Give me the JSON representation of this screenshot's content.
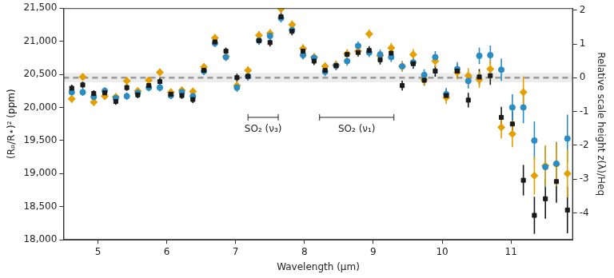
{
  "chart_data": {
    "type": "scatter",
    "x_label": "Wavelength (µm)",
    "y_label": "(Rₚ/R⋆)² (ppm)",
    "y2_label": "Relative scale height z(λ)/Heq",
    "xlim": [
      4.5,
      11.9
    ],
    "xticks": [
      5,
      6,
      7,
      8,
      9,
      10,
      11
    ],
    "ylim": [
      18000,
      21500
    ],
    "yticks": [
      {
        "value": 18000,
        "label": "18,000"
      },
      {
        "value": 18500,
        "label": "18,500"
      },
      {
        "value": 19000,
        "label": "19,000"
      },
      {
        "value": 19500,
        "label": "19,500"
      },
      {
        "value": 20000,
        "label": "20,000"
      },
      {
        "value": 20500,
        "label": "20,500"
      },
      {
        "value": 21000,
        "label": "21,000"
      },
      {
        "value": 21500,
        "label": "21,500"
      }
    ],
    "y2lim": [
      -4.8,
      2.06
    ],
    "y2ticks": [
      -4,
      -3,
      -2,
      -1,
      0,
      1,
      2
    ],
    "grid": false,
    "reference": {
      "value": 20450,
      "band": [
        20380,
        20520
      ],
      "line_style": "dashed"
    },
    "annotations": [
      {
        "text": "SO₂ (ν₃)",
        "x": [
          7.18,
          7.62
        ],
        "y": 19850
      },
      {
        "text": "SO₂ (ν₁)",
        "x": [
          8.22,
          9.3
        ],
        "y": 19850
      }
    ],
    "x": [
      4.62,
      4.78,
      4.94,
      5.1,
      5.26,
      5.42,
      5.58,
      5.74,
      5.9,
      6.06,
      6.22,
      6.38,
      6.54,
      6.7,
      6.86,
      7.02,
      7.18,
      7.34,
      7.5,
      7.66,
      7.82,
      7.98,
      8.14,
      8.3,
      8.46,
      8.62,
      8.78,
      8.94,
      9.1,
      9.26,
      9.42,
      9.58,
      9.74,
      9.9,
      10.06,
      10.22,
      10.38,
      10.54,
      10.7,
      10.86,
      11.02,
      11.18,
      11.34,
      11.5,
      11.66,
      11.82
    ],
    "series": [
      {
        "color": "#1a1a1a",
        "marker": "square",
        "values": [
          20290,
          20340,
          20210,
          20220,
          20090,
          20300,
          20190,
          20330,
          20390,
          20200,
          20180,
          20120,
          20560,
          20990,
          20850,
          20450,
          20470,
          21010,
          20980,
          21370,
          21150,
          20850,
          20700,
          20560,
          20630,
          20800,
          20830,
          20860,
          20720,
          20820,
          20330,
          20660,
          20410,
          20550,
          20180,
          20550,
          20110,
          20460,
          20480,
          19850,
          19750,
          18900,
          18370,
          18620,
          18880,
          18450
        ],
        "errors": [
          55,
          50,
          50,
          50,
          50,
          50,
          50,
          50,
          55,
          50,
          50,
          55,
          55,
          55,
          55,
          60,
          60,
          60,
          60,
          60,
          60,
          60,
          60,
          60,
          65,
          65,
          65,
          65,
          70,
          70,
          75,
          75,
          80,
          85,
          90,
          100,
          110,
          120,
          140,
          160,
          190,
          230,
          280,
          300,
          320,
          350
        ]
      },
      {
        "color": "#2b8cc4",
        "marker": "circle",
        "values": [
          20230,
          20230,
          20160,
          20250,
          20140,
          20170,
          20220,
          20300,
          20300,
          20180,
          20230,
          20170,
          20550,
          20970,
          20760,
          20300,
          20470,
          21010,
          21080,
          21350,
          21170,
          20790,
          20750,
          20540,
          20630,
          20700,
          20930,
          20830,
          20800,
          20760,
          20620,
          20680,
          20490,
          20760,
          20200,
          20580,
          20400,
          20780,
          20790,
          20570,
          20000,
          20000,
          19500,
          19100,
          19150,
          19530
        ],
        "errors": [
          60,
          55,
          55,
          55,
          55,
          55,
          55,
          55,
          60,
          55,
          55,
          60,
          60,
          60,
          60,
          65,
          65,
          65,
          65,
          65,
          65,
          65,
          65,
          65,
          70,
          70,
          70,
          70,
          75,
          75,
          80,
          80,
          85,
          90,
          95,
          105,
          115,
          125,
          145,
          170,
          200,
          240,
          290,
          310,
          330,
          360
        ]
      },
      {
        "color": "#e69f00",
        "marker": "diamond",
        "values": [
          20130,
          20460,
          20080,
          20170,
          20160,
          20400,
          20250,
          20410,
          20530,
          20230,
          20260,
          20240,
          20610,
          21050,
          20770,
          20330,
          20560,
          21090,
          21120,
          21490,
          21250,
          20890,
          20760,
          20620,
          20640,
          20810,
          20850,
          21110,
          20780,
          20900,
          20620,
          20800,
          20420,
          20700,
          20150,
          20530,
          20480,
          20420,
          20580,
          19700,
          19600,
          20230,
          18970,
          19120,
          19140,
          19000
        ],
        "errors": [
          60,
          55,
          55,
          55,
          55,
          55,
          55,
          55,
          60,
          55,
          55,
          60,
          60,
          60,
          60,
          65,
          65,
          65,
          65,
          65,
          65,
          65,
          65,
          65,
          70,
          70,
          70,
          70,
          75,
          75,
          80,
          80,
          85,
          90,
          95,
          105,
          115,
          125,
          145,
          170,
          200,
          240,
          290,
          310,
          330,
          360
        ]
      }
    ]
  }
}
